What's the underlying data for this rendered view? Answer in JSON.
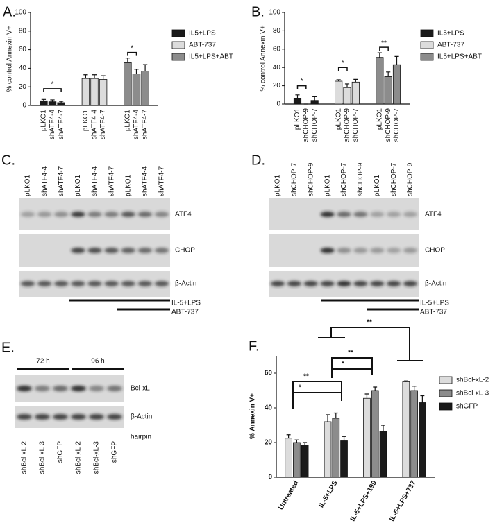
{
  "chart_data": [
    {
      "type": "bar",
      "title": "A.",
      "y_label": "% control Annexin V+",
      "categories": [
        "pLKO1",
        "shATF4-4",
        "shATF4-7",
        "pLKO1",
        "shATF4-4",
        "shATF4-7",
        "pLKO1",
        "shATF4-4",
        "shATF4-7"
      ],
      "series": [
        {
          "name": "IL5+LPS",
          "color": "#1a1a1a",
          "values": [
            5,
            4,
            3,
            null,
            null,
            null,
            null,
            null,
            null
          ],
          "errors": [
            1.5,
            2,
            1.5,
            null,
            null,
            null,
            null,
            null,
            null
          ]
        },
        {
          "name": "ABT-737",
          "color": "#dcdcdc",
          "values": [
            null,
            null,
            null,
            29,
            29,
            28,
            null,
            null,
            null
          ],
          "errors": [
            null,
            null,
            null,
            4,
            4,
            4,
            null,
            null,
            null
          ]
        },
        {
          "name": "IL5+LPS+ABT",
          "color": "#8c8c8c",
          "values": [
            null,
            null,
            null,
            null,
            null,
            null,
            46,
            34,
            37
          ],
          "errors": [
            null,
            null,
            null,
            null,
            null,
            null,
            5,
            5,
            7
          ]
        }
      ],
      "ylim": [
        0,
        100
      ],
      "yticks": [
        0,
        20,
        40,
        60,
        80,
        100
      ],
      "annotations": [
        "*",
        "*"
      ]
    },
    {
      "type": "bar",
      "title": "B.",
      "y_label": "% control Annexin V+",
      "categories": [
        "pLKO1",
        "shCHOP-9",
        "shCHOP-7",
        "pLKO1",
        "shCHOP-9",
        "shCHOP-7",
        "pLKO1",
        "shCHOP-9",
        "shCHOP-7"
      ],
      "series": [
        {
          "name": "IL5+LPS",
          "color": "#1a1a1a",
          "values": [
            6,
            0,
            4,
            null,
            null,
            null,
            null,
            null,
            null
          ],
          "errors": [
            4,
            0,
            4,
            null,
            null,
            null,
            null,
            null,
            null
          ]
        },
        {
          "name": "ABT-737",
          "color": "#dcdcdc",
          "values": [
            null,
            null,
            null,
            25,
            18,
            24,
            null,
            null,
            null
          ],
          "errors": [
            null,
            null,
            null,
            1.5,
            4,
            3,
            null,
            null,
            null
          ]
        },
        {
          "name": "IL5+LPS+ABT",
          "color": "#8c8c8c",
          "values": [
            null,
            null,
            null,
            null,
            null,
            null,
            51,
            30,
            43
          ],
          "errors": [
            null,
            null,
            null,
            null,
            null,
            null,
            5,
            5,
            9
          ]
        }
      ],
      "ylim": [
        0,
        100
      ],
      "yticks": [
        0,
        20,
        40,
        60,
        80,
        100
      ],
      "annotations": [
        "*",
        "*",
        "**"
      ]
    },
    {
      "type": "bar",
      "title": "F.",
      "y_label": "% Annexin V+",
      "categories": [
        "Untreated",
        "IL-5+LPS",
        "IL-5+LPS+199",
        "IL-5+LPS+737"
      ],
      "series": [
        {
          "name": "shBcl-xL-2",
          "color": "#dcdcdc",
          "values": [
            22.5,
            32,
            45.5,
            55
          ],
          "errors": [
            2,
            4,
            2.5,
            0.5
          ]
        },
        {
          "name": "shBcl-xL-3",
          "color": "#8c8c8c",
          "values": [
            20,
            34,
            50,
            50
          ],
          "errors": [
            1.5,
            3,
            2,
            2.5
          ]
        },
        {
          "name": "shGFP",
          "color": "#1a1a1a",
          "values": [
            18.5,
            21,
            26.5,
            43
          ],
          "errors": [
            1.5,
            2.5,
            3.5,
            4
          ]
        }
      ],
      "ylim": [
        0,
        70
      ],
      "yticks": [
        0,
        20,
        40,
        60
      ],
      "annotations": [
        "*",
        "**",
        "*",
        "**",
        "**"
      ]
    }
  ],
  "blots": [
    {
      "title": "C.",
      "lanes": [
        "pLKO1",
        "shATF4-4",
        "shATF4-7",
        "pLKO1",
        "shATF4-4",
        "shATF4-7",
        "pLKO1",
        "shATF4-4",
        "shATF4-7"
      ],
      "bands": [
        "ATF4",
        "CHOP",
        "β-Actin"
      ],
      "treatments": [
        "IL-5+LPS",
        "ABT-737"
      ]
    },
    {
      "title": "D.",
      "lanes": [
        "pLKO1",
        "shCHOP-7",
        "shCHOP-9",
        "pLKO1",
        "shCHOP-7",
        "shCHOP-9",
        "pLKO1",
        "shCHOP-7",
        "shCHOP-9"
      ],
      "bands": [
        "ATF4",
        "CHOP",
        "β-Actin"
      ],
      "treatments": [
        "IL-5+LPS",
        "ABT-737"
      ]
    },
    {
      "title": "E.",
      "timepoints": [
        "72 h",
        "96 h"
      ],
      "lanes": [
        "shBcl-xL-2",
        "shBcl-xL-3",
        "shGFP",
        "shBcl-xL-2",
        "shBcl-xL-3",
        "shGFP"
      ],
      "bands": [
        "Bcl-xL",
        "β-Actin"
      ],
      "row_label": "hairpin"
    }
  ]
}
